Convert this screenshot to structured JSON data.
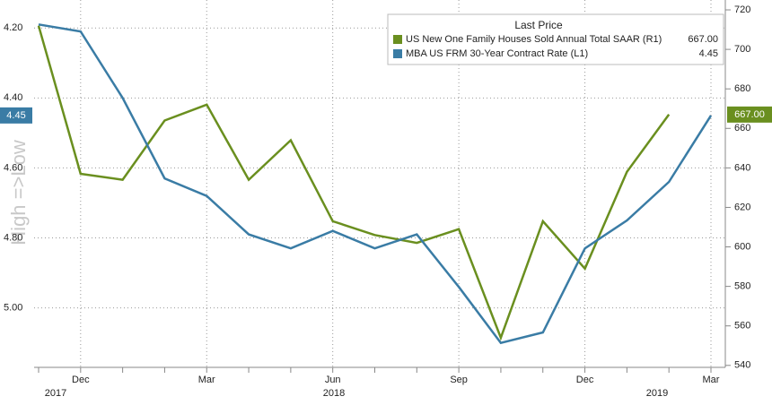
{
  "chart_data": {
    "type": "line",
    "y_label": "High =>Low",
    "legend_title": "Last Price",
    "categories": [
      null,
      "Dec",
      null,
      null,
      "Mar",
      null,
      null,
      "Jun",
      null,
      null,
      "Sep",
      null,
      null,
      "Dec",
      null,
      null,
      "Mar"
    ],
    "years": [
      "2017",
      "2018",
      "2019"
    ],
    "ylim": [
      4.12,
      5.17
    ],
    "y_inverted": true,
    "yticks": [
      {
        "value": 4.2,
        "label": "4.20"
      },
      {
        "value": 4.4,
        "label": "4.40"
      },
      {
        "value": 4.6,
        "label": "4.60"
      },
      {
        "value": 4.8,
        "label": "4.80"
      },
      {
        "value": 5.0,
        "label": "5.00"
      }
    ],
    "y2lim": [
      539,
      725
    ],
    "y2ticks": [
      540,
      560,
      580,
      600,
      620,
      640,
      660,
      680,
      700,
      720
    ],
    "grid": true,
    "series": [
      {
        "name": "US New One Family Houses Sold Annual Total SAAR (R1)",
        "color": "#6a8f1f",
        "axis": "y2",
        "values": [
          712,
          637,
          634,
          664,
          672,
          634,
          654,
          613,
          606,
          602,
          609,
          554,
          613,
          589,
          638,
          667,
          null
        ],
        "value_labels": [
          null,
          null,
          null,
          null,
          null,
          null,
          null,
          null,
          null,
          null,
          null,
          null,
          null,
          null,
          null,
          "667.00",
          null
        ]
      },
      {
        "name": "MBA US FRM 30-Year Contract Rate (L1)",
        "color": "#3a7ca5",
        "values": [
          4.19,
          4.21,
          4.4,
          4.63,
          4.68,
          4.79,
          4.83,
          4.78,
          4.83,
          4.79,
          4.94,
          5.1,
          5.07,
          4.83,
          4.75,
          4.64,
          4.45
        ],
        "value_labels": [
          null,
          null,
          null,
          null,
          null,
          null,
          null,
          null,
          null,
          null,
          null,
          null,
          null,
          null,
          null,
          null,
          "4.45"
        ]
      }
    ]
  }
}
